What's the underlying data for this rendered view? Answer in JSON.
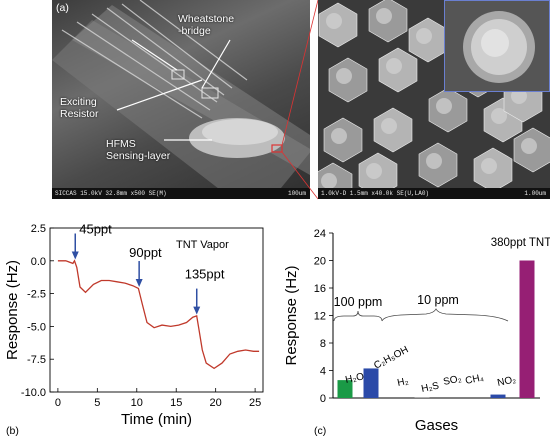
{
  "panel_a": {
    "label": "(a)",
    "annotations": {
      "wheatstone": "Wheatstone\n-bridge",
      "resistor": "Exciting\nResistor",
      "hfms": "HFMS\nSensing-layer"
    },
    "left_bar": "SICCAS 15.0kV 32.8mm x500 SE(M)",
    "left_scale": "100um",
    "right_bar": "1.0kV-D 1.5mm x40.0k SE(U,LA0)",
    "right_scale": "1.00um"
  },
  "panel_b": {
    "label": "(b)",
    "annotation": "TNT Vapor",
    "arrow_labels": [
      "45ppt",
      "90ppt",
      "135ppt"
    ]
  },
  "panel_c": {
    "label": "(c)",
    "group_labels": [
      "100 ppm",
      "10 ppm",
      "380ppt TNT"
    ]
  },
  "colors": {
    "trace": "#c0392b",
    "arrow": "#2f4fa3",
    "h2o_bar": "#1a9a46",
    "ethanol_bar": "#2b4aa8",
    "no2_bar": "#2b4aa8",
    "tnt_bar": "#961f74"
  },
  "chart_data": [
    {
      "type": "line",
      "xlabel": "Time (min)",
      "ylabel": "Response (Hz)",
      "xlim": [
        -1,
        26
      ],
      "ylim": [
        -10,
        2.5
      ],
      "xticks": [
        "0",
        "5",
        "10",
        "15",
        "20",
        "25"
      ],
      "yticks": [
        "2.5",
        "0.0",
        "-2.5",
        "-5.0",
        "-7.5",
        "-10.0"
      ],
      "series": [
        {
          "x": [
            0,
            1,
            1.9,
            2.1,
            2.4,
            2.8,
            3.5,
            4.5,
            5.5,
            6.5,
            7.5,
            8.5,
            9.5,
            10.2,
            10.7,
            11.3,
            12.2,
            13.2,
            14.3,
            15.3,
            16.3,
            17.1,
            17.6,
            17.9,
            18.3,
            18.8,
            19.8,
            20.8,
            21.8,
            22.8,
            23.8,
            24.8,
            25.5
          ],
          "y": [
            0,
            0,
            -0.2,
            0,
            -0.5,
            -2.0,
            -2.4,
            -1.8,
            -1.5,
            -1.5,
            -1.6,
            -1.7,
            -1.9,
            -2.1,
            -3.3,
            -4.7,
            -5.1,
            -4.9,
            -5.0,
            -4.9,
            -4.7,
            -4.3,
            -4.2,
            -5.3,
            -6.8,
            -7.8,
            -8.2,
            -7.8,
            -7.1,
            -6.9,
            -6.8,
            -6.9,
            -6.9
          ]
        }
      ]
    },
    {
      "type": "bar",
      "xlabel": "Gases",
      "ylabel": "Response (Hz)",
      "ylim": [
        0,
        24
      ],
      "yticks": [
        "0",
        "4",
        "8",
        "12",
        "16",
        "20",
        "24"
      ],
      "categories": [
        "H₂O",
        "C₂H₅OH",
        "H₂",
        "H₂S",
        "SO₂",
        "CH₄",
        "NO₂",
        "TNT"
      ],
      "values": [
        2.6,
        4.3,
        0.0,
        0.1,
        0.0,
        0.0,
        0.5,
        20.0
      ]
    }
  ]
}
